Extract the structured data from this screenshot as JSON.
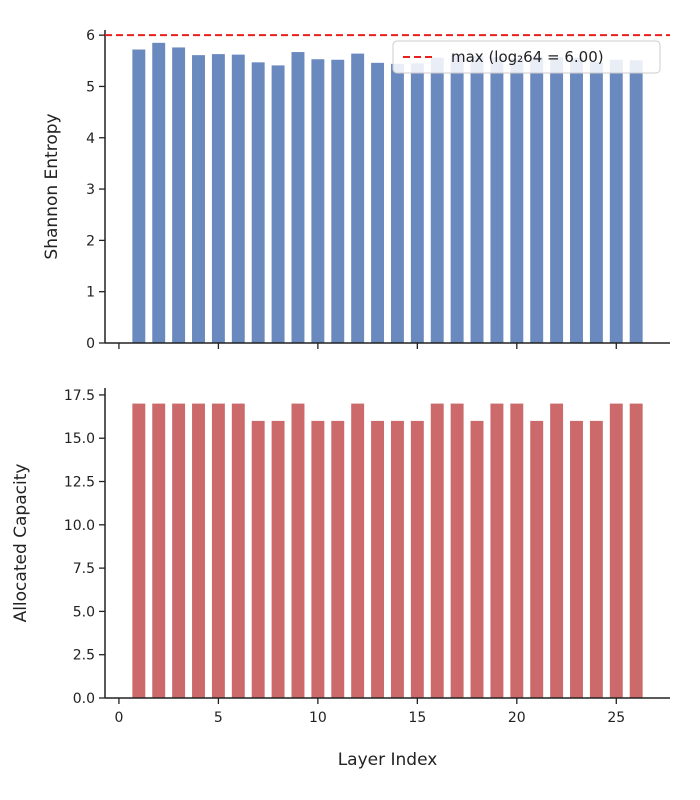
{
  "chart_data": [
    {
      "type": "bar",
      "ylabel": "Shannon Entropy",
      "xlabel": "",
      "x": [
        1,
        2,
        3,
        4,
        5,
        6,
        7,
        8,
        9,
        10,
        11,
        12,
        13,
        14,
        15,
        16,
        17,
        18,
        19,
        20,
        21,
        22,
        23,
        24,
        25,
        26
      ],
      "values": [
        5.72,
        5.85,
        5.76,
        5.61,
        5.63,
        5.62,
        5.47,
        5.41,
        5.67,
        5.53,
        5.52,
        5.64,
        5.46,
        5.44,
        5.45,
        5.56,
        5.61,
        5.59,
        5.57,
        5.55,
        5.58,
        5.57,
        5.56,
        5.48,
        5.52,
        5.51
      ],
      "bar_color": "#6a89bf",
      "xlim": [
        -0.7,
        27.7
      ],
      "ylim": [
        0,
        6.1
      ],
      "yticks": [
        0,
        1,
        2,
        3,
        4,
        5,
        6
      ],
      "xticks": [
        0,
        5,
        10,
        15,
        20,
        25
      ],
      "xtick_labels_shown": false,
      "reference_line": {
        "y": 6.0,
        "style": "dashed",
        "color": "#e8201c",
        "label": "max (log₂64 = 6.00)"
      },
      "legend_position": "top-right",
      "grid": false
    },
    {
      "type": "bar",
      "ylabel": "Allocated Capacity",
      "xlabel": "Layer Index",
      "x": [
        1,
        2,
        3,
        4,
        5,
        6,
        7,
        8,
        9,
        10,
        11,
        12,
        13,
        14,
        15,
        16,
        17,
        18,
        19,
        20,
        21,
        22,
        23,
        24,
        25,
        26
      ],
      "values": [
        17,
        17,
        17,
        17,
        17,
        17,
        16,
        16,
        17,
        16,
        16,
        17,
        16,
        16,
        16,
        17,
        17,
        16,
        17,
        17,
        16,
        17,
        16,
        16,
        17,
        17
      ],
      "bar_color": "#cc6a6b",
      "xlim": [
        -0.7,
        27.7
      ],
      "ylim": [
        0,
        17.9
      ],
      "yticks": [
        0.0,
        2.5,
        5.0,
        7.5,
        10.0,
        12.5,
        15.0,
        17.5
      ],
      "ytick_labels": [
        "0.0",
        "2.5",
        "5.0",
        "7.5",
        "10.0",
        "12.5",
        "15.0",
        "17.5"
      ],
      "xticks": [
        0,
        5,
        10,
        15,
        20,
        25
      ],
      "xtick_labels": [
        "0",
        "5",
        "10",
        "15",
        "20",
        "25"
      ],
      "grid": false
    }
  ]
}
